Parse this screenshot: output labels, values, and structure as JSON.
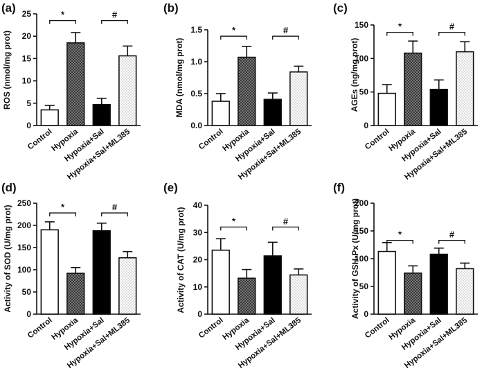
{
  "chart_data": [
    {
      "type": "bar",
      "panel": "(a)",
      "ylabel": "ROS (nmol/mg prot)",
      "ylim": [
        0,
        25
      ],
      "yticks": [
        0,
        5,
        10,
        15,
        20,
        25
      ],
      "categories": [
        "Control",
        "Hypoxia",
        "Hypoxia+Sal",
        "Hypoxia+Sal+ML385"
      ],
      "values": [
        3.5,
        18.5,
        4.7,
        15.6
      ],
      "errors": [
        1.0,
        2.3,
        1.4,
        2.2
      ],
      "fills": [
        "white",
        "crosshatch",
        "black",
        "dots"
      ],
      "annotations": [
        {
          "text": "*",
          "from": 0,
          "to": 1,
          "y": 23.5
        },
        {
          "text": "#",
          "from": 2,
          "to": 3,
          "y": 23.5
        }
      ]
    },
    {
      "type": "bar",
      "panel": "(b)",
      "ylabel": "MDA (nmol/mg prot)",
      "ylim": [
        0,
        1.5
      ],
      "yticks": [
        0.0,
        0.5,
        1.0,
        1.5
      ],
      "categories": [
        "Control",
        "Hypoxia",
        "Hypoxia+Sal",
        "Hypoxia+Sal+ML385"
      ],
      "values": [
        0.38,
        1.07,
        0.41,
        0.84
      ],
      "errors": [
        0.12,
        0.17,
        0.1,
        0.09
      ],
      "fills": [
        "white",
        "crosshatch",
        "black",
        "dots"
      ],
      "annotations": [
        {
          "text": "*",
          "from": 0,
          "to": 1,
          "y": 1.4
        },
        {
          "text": "#",
          "from": 2,
          "to": 3,
          "y": 1.4
        }
      ]
    },
    {
      "type": "bar",
      "panel": "(c)",
      "ylabel": "AGEs (ng/mg prot)",
      "ylim": [
        0,
        150
      ],
      "yticks": [
        0,
        50,
        100,
        150
      ],
      "categories": [
        "Control",
        "Hypoxia",
        "Hypoxia+Sal",
        "Hypoxia+Sal+ML385"
      ],
      "values": [
        48,
        108,
        54,
        110
      ],
      "errors": [
        13,
        18,
        14,
        15
      ],
      "fills": [
        "white",
        "crosshatch",
        "black",
        "dots"
      ],
      "annotations": [
        {
          "text": "*",
          "from": 0,
          "to": 1,
          "y": 139
        },
        {
          "text": "#",
          "from": 2,
          "to": 3,
          "y": 139
        }
      ]
    },
    {
      "type": "bar",
      "panel": "(d)",
      "ylabel": "Activity of SOD (U/mg prot)",
      "ylim": [
        0,
        250
      ],
      "yticks": [
        0,
        50,
        100,
        150,
        200,
        250
      ],
      "categories": [
        "Control",
        "Hypoxia",
        "Hypoxia+Sal",
        "Hypoxia+Sal+ML385"
      ],
      "values": [
        190,
        92,
        188,
        127
      ],
      "errors": [
        18,
        13,
        17,
        14
      ],
      "fills": [
        "white",
        "crosshatch",
        "black",
        "dots"
      ],
      "annotations": [
        {
          "text": "*",
          "from": 0,
          "to": 1,
          "y": 228
        },
        {
          "text": "#",
          "from": 2,
          "to": 3,
          "y": 228
        }
      ]
    },
    {
      "type": "bar",
      "panel": "(e)",
      "ylabel": "Activity of CAT (U/mg prot)",
      "ylim": [
        0,
        40
      ],
      "yticks": [
        0,
        10,
        20,
        30,
        40
      ],
      "categories": [
        "Control",
        "Hypoxia",
        "Hypoxia+Sal",
        "Hypoxia+Sal+ML385"
      ],
      "values": [
        23.5,
        13.2,
        21.4,
        14.4
      ],
      "errors": [
        4.2,
        3.2,
        5.0,
        2.2
      ],
      "fills": [
        "white",
        "crosshatch",
        "black",
        "dots"
      ],
      "annotations": [
        {
          "text": "*",
          "from": 0,
          "to": 1,
          "y": 32
        },
        {
          "text": "#",
          "from": 2,
          "to": 3,
          "y": 32
        }
      ]
    },
    {
      "type": "bar",
      "panel": "(f)",
      "ylabel": "Activity of GSH-Px (U/mg prot)",
      "ylim": [
        0,
        200
      ],
      "yticks": [
        0,
        50,
        100,
        150,
        200
      ],
      "categories": [
        "Control",
        "Hypoxia",
        "Hypoxia+Sal",
        "Hypoxia+Sal+ML385"
      ],
      "values": [
        113,
        74,
        108,
        82
      ],
      "errors": [
        16,
        13,
        11,
        10
      ],
      "fills": [
        "white",
        "crosshatch",
        "black",
        "dots"
      ],
      "annotations": [
        {
          "text": "*",
          "from": 0,
          "to": 1,
          "y": 133
        },
        {
          "text": "#",
          "from": 2,
          "to": 3,
          "y": 133
        }
      ]
    }
  ]
}
